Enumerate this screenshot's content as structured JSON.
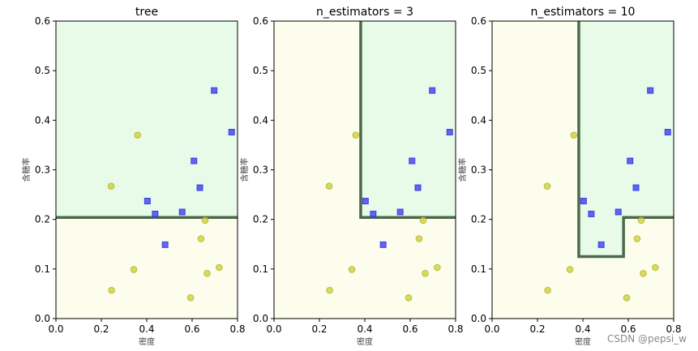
{
  "chart_data": [
    {
      "type": "scatter",
      "title": "tree",
      "xlabel": "密度",
      "ylabel": "含糖率",
      "xlim": [
        0.0,
        0.8
      ],
      "ylim": [
        0.0,
        0.6
      ],
      "xticks": [
        "0.0",
        "0.2",
        "0.4",
        "0.6",
        "0.8"
      ],
      "yticks": [
        "0.0",
        "0.1",
        "0.2",
        "0.3",
        "0.4",
        "0.5",
        "0.6"
      ],
      "regions": {
        "good_color": "#e8fbe8",
        "bad_color": "#fcfdec"
      },
      "boundary": [
        [
          0.0,
          0.204
        ],
        [
          0.8,
          0.204
        ]
      ],
      "series": [
        {
          "marker": "square",
          "color": "#3333ee",
          "points": [
            [
              0.697,
              0.46
            ],
            [
              0.774,
              0.376
            ],
            [
              0.608,
              0.318
            ],
            [
              0.634,
              0.264
            ],
            [
              0.403,
              0.237
            ],
            [
              0.437,
              0.211
            ],
            [
              0.556,
              0.215
            ],
            [
              0.481,
              0.149
            ]
          ]
        },
        {
          "marker": "circle",
          "color": "#cccc33",
          "points": [
            [
              0.36,
              0.37
            ],
            [
              0.243,
              0.267
            ],
            [
              0.657,
              0.198
            ],
            [
              0.639,
              0.161
            ],
            [
              0.343,
              0.099
            ],
            [
              0.719,
              0.103
            ],
            [
              0.666,
              0.091
            ],
            [
              0.245,
              0.057
            ],
            [
              0.593,
              0.042
            ]
          ]
        }
      ]
    },
    {
      "type": "scatter",
      "title": "n_estimators = 3",
      "xlabel": "密度",
      "ylabel": "含糖率",
      "xlim": [
        0.0,
        0.8
      ],
      "ylim": [
        0.0,
        0.6
      ],
      "xticks": [
        "0.0",
        "0.2",
        "0.4",
        "0.6",
        "0.8"
      ],
      "yticks": [
        "0.0",
        "0.1",
        "0.2",
        "0.3",
        "0.4",
        "0.5",
        "0.6"
      ],
      "regions": {
        "good_color": "#e8fbe8",
        "bad_color": "#fcfdec"
      },
      "boundary": [
        [
          0.382,
          0.6
        ],
        [
          0.382,
          0.204
        ],
        [
          0.8,
          0.204
        ]
      ],
      "series": [
        {
          "marker": "square",
          "color": "#3333ee",
          "points": [
            [
              0.697,
              0.46
            ],
            [
              0.774,
              0.376
            ],
            [
              0.608,
              0.318
            ],
            [
              0.634,
              0.264
            ],
            [
              0.403,
              0.237
            ],
            [
              0.437,
              0.211
            ],
            [
              0.556,
              0.215
            ],
            [
              0.481,
              0.149
            ]
          ]
        },
        {
          "marker": "circle",
          "color": "#cccc33",
          "points": [
            [
              0.36,
              0.37
            ],
            [
              0.243,
              0.267
            ],
            [
              0.657,
              0.198
            ],
            [
              0.639,
              0.161
            ],
            [
              0.343,
              0.099
            ],
            [
              0.719,
              0.103
            ],
            [
              0.666,
              0.091
            ],
            [
              0.245,
              0.057
            ],
            [
              0.593,
              0.042
            ]
          ]
        }
      ]
    },
    {
      "type": "scatter",
      "title": "n_estimators = 10",
      "xlabel": "密度",
      "ylabel": "含糖率",
      "xlim": [
        0.0,
        0.8
      ],
      "ylim": [
        0.0,
        0.6
      ],
      "xticks": [
        "0.0",
        "0.2",
        "0.4",
        "0.6",
        "0.8"
      ],
      "yticks": [
        "0.0",
        "0.1",
        "0.2",
        "0.3",
        "0.4",
        "0.5",
        "0.6"
      ],
      "regions": {
        "good_color": "#e8fbe8",
        "bad_color": "#fcfdec"
      },
      "boundary": [
        [
          0.382,
          0.6
        ],
        [
          0.382,
          0.125
        ],
        [
          0.579,
          0.125
        ],
        [
          0.579,
          0.204
        ],
        [
          0.8,
          0.204
        ]
      ],
      "series": [
        {
          "marker": "square",
          "color": "#3333ee",
          "points": [
            [
              0.697,
              0.46
            ],
            [
              0.774,
              0.376
            ],
            [
              0.608,
              0.318
            ],
            [
              0.634,
              0.264
            ],
            [
              0.403,
              0.237
            ],
            [
              0.437,
              0.211
            ],
            [
              0.556,
              0.215
            ],
            [
              0.481,
              0.149
            ]
          ]
        },
        {
          "marker": "circle",
          "color": "#cccc33",
          "points": [
            [
              0.36,
              0.37
            ],
            [
              0.243,
              0.267
            ],
            [
              0.657,
              0.198
            ],
            [
              0.639,
              0.161
            ],
            [
              0.343,
              0.099
            ],
            [
              0.719,
              0.103
            ],
            [
              0.666,
              0.091
            ],
            [
              0.245,
              0.057
            ],
            [
              0.593,
              0.042
            ]
          ]
        }
      ]
    }
  ],
  "watermark": "CSDN @pepsi_w"
}
